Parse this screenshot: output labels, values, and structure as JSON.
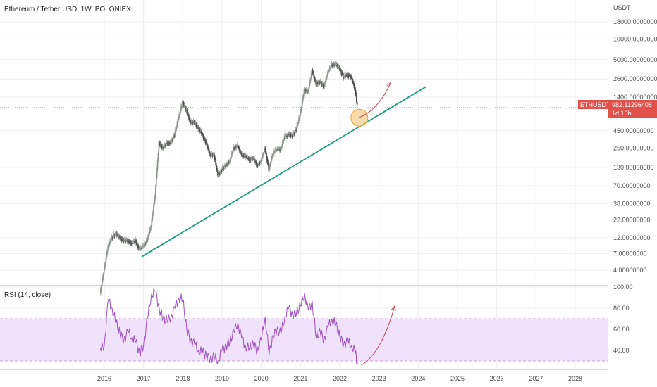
{
  "header": {
    "title": "Ethereum / Tether USD, 1W, POLONIEX",
    "unit": "USDT"
  },
  "colors": {
    "candle_up": "#9aa59a",
    "candle_down": "#4e4e4e",
    "trendline": "#1a9c80",
    "arrow": "#c0505a",
    "price_line": "#e06060",
    "price_tag": "#e2504a",
    "circle_fill": "#f5cc8a",
    "circle_stroke": "#f0a030",
    "rsi_line": "#a050c0",
    "rsi_band": "#f1e2fb",
    "rsi_band_border": "#c9a6e0",
    "grid": "#eeeeee",
    "axis_text": "#4a4a4a"
  },
  "price_tag": {
    "symbol": "ETHUSDT",
    "value": "982.11296405",
    "countdown": "1d 16h"
  },
  "rsi": {
    "label": "RSI (14, close)",
    "ticks": [
      "100.00",
      "80.00",
      "60.00",
      "40.00"
    ],
    "band": [
      30,
      70
    ]
  },
  "chart_data": {
    "type": "line",
    "title": "Ethereum / Tether USD, 1W, POLONIEX",
    "ylabel": "USDT",
    "xlabel": "",
    "y_scale": "log",
    "ylim": [
      1.5,
      28000
    ],
    "x_ticks": [
      "2016",
      "2017",
      "2018",
      "2019",
      "2020",
      "2021",
      "2022",
      "2023",
      "2024",
      "2025",
      "2026",
      "2027",
      "2028"
    ],
    "y_ticks": [
      "18000.00000000",
      "10000.00000000",
      "5000.00000000",
      "2600.00000000",
      "1400.00000000",
      "982.11296405",
      "450.00000000",
      "250.00000000",
      "130.00000000",
      "70.00000000",
      "38.00000000",
      "22.00000000",
      "12.00000000",
      "7.00000000",
      "4.00000000"
    ],
    "legend": "none",
    "grid": true,
    "series": [
      {
        "x": [
          2015.9,
          2016.0,
          2016.1,
          2016.2,
          2016.3,
          2016.4,
          2016.5,
          2016.6,
          2016.7,
          2016.8,
          2016.9,
          2017.0,
          2017.1,
          2017.2,
          2017.3,
          2017.4,
          2017.5,
          2017.6,
          2017.7,
          2017.8,
          2017.9,
          2018.0,
          2018.1,
          2018.2,
          2018.3,
          2018.4,
          2018.5,
          2018.6,
          2018.7,
          2018.8,
          2018.9,
          2019.0,
          2019.1,
          2019.2,
          2019.3,
          2019.4,
          2019.5,
          2019.6,
          2019.7,
          2019.8,
          2019.9,
          2020.0,
          2020.1,
          2020.2,
          2020.3,
          2020.4,
          2020.5,
          2020.6,
          2020.7,
          2020.8,
          2020.9,
          2021.0,
          2021.1,
          2021.2,
          2021.3,
          2021.4,
          2021.5,
          2021.6,
          2021.7,
          2021.8,
          2021.9,
          2022.0,
          2022.1,
          2022.2,
          2022.3,
          2022.4,
          2022.45
        ],
        "y": [
          1.8,
          4,
          9,
          12,
          14,
          12,
          11,
          11,
          10,
          11,
          8,
          9,
          11,
          18,
          50,
          300,
          250,
          300,
          300,
          400,
          700,
          1200,
          900,
          600,
          600,
          500,
          400,
          300,
          200,
          200,
          100,
          120,
          140,
          160,
          250,
          270,
          200,
          190,
          170,
          180,
          140,
          160,
          250,
          120,
          210,
          240,
          240,
          360,
          400,
          380,
          480,
          800,
          1800,
          1700,
          3500,
          2200,
          2400,
          2000,
          3200,
          4200,
          4300,
          3700,
          2800,
          3000,
          2800,
          1800,
          1050
        ]
      }
    ],
    "rsi_series": {
      "x": [
        2015.9,
        2016.0,
        2016.1,
        2016.2,
        2016.3,
        2016.4,
        2016.5,
        2016.6,
        2016.7,
        2016.8,
        2016.9,
        2017.0,
        2017.1,
        2017.2,
        2017.3,
        2017.4,
        2017.5,
        2017.6,
        2017.7,
        2017.8,
        2017.9,
        2018.0,
        2018.1,
        2018.2,
        2018.3,
        2018.4,
        2018.5,
        2018.6,
        2018.7,
        2018.8,
        2018.9,
        2019.0,
        2019.1,
        2019.2,
        2019.3,
        2019.4,
        2019.5,
        2019.6,
        2019.7,
        2019.8,
        2019.9,
        2020.0,
        2020.1,
        2020.2,
        2020.3,
        2020.4,
        2020.5,
        2020.6,
        2020.7,
        2020.8,
        2020.9,
        2021.0,
        2021.1,
        2021.2,
        2021.3,
        2021.4,
        2021.5,
        2021.6,
        2021.7,
        2021.8,
        2021.9,
        2022.0,
        2022.1,
        2022.2,
        2022.3,
        2022.4,
        2022.45
      ],
      "y": [
        42,
        45,
        88,
        80,
        66,
        56,
        50,
        58,
        52,
        48,
        38,
        45,
        70,
        93,
        96,
        80,
        70,
        68,
        72,
        80,
        90,
        88,
        60,
        50,
        46,
        40,
        38,
        36,
        32,
        34,
        30,
        40,
        45,
        48,
        58,
        66,
        52,
        44,
        42,
        46,
        40,
        50,
        72,
        36,
        54,
        60,
        56,
        72,
        80,
        74,
        76,
        82,
        94,
        78,
        86,
        52,
        58,
        50,
        62,
        70,
        64,
        54,
        46,
        48,
        45,
        38,
        27
      ]
    },
    "trendline": {
      "x": [
        2016.95,
        2024.2
      ],
      "y": [
        6.3,
        2000
      ]
    },
    "projection_arrows": [
      {
        "panel": "price",
        "x": [
          2022.48,
          2023.3
        ],
        "y": [
          700,
          2300
        ]
      },
      {
        "panel": "rsi",
        "x": [
          2022.55,
          2023.4
        ],
        "y": [
          26,
          82
        ]
      }
    ],
    "highlight_circle": {
      "x": 2022.5,
      "y": 700
    },
    "last_price": 982.11296405
  }
}
